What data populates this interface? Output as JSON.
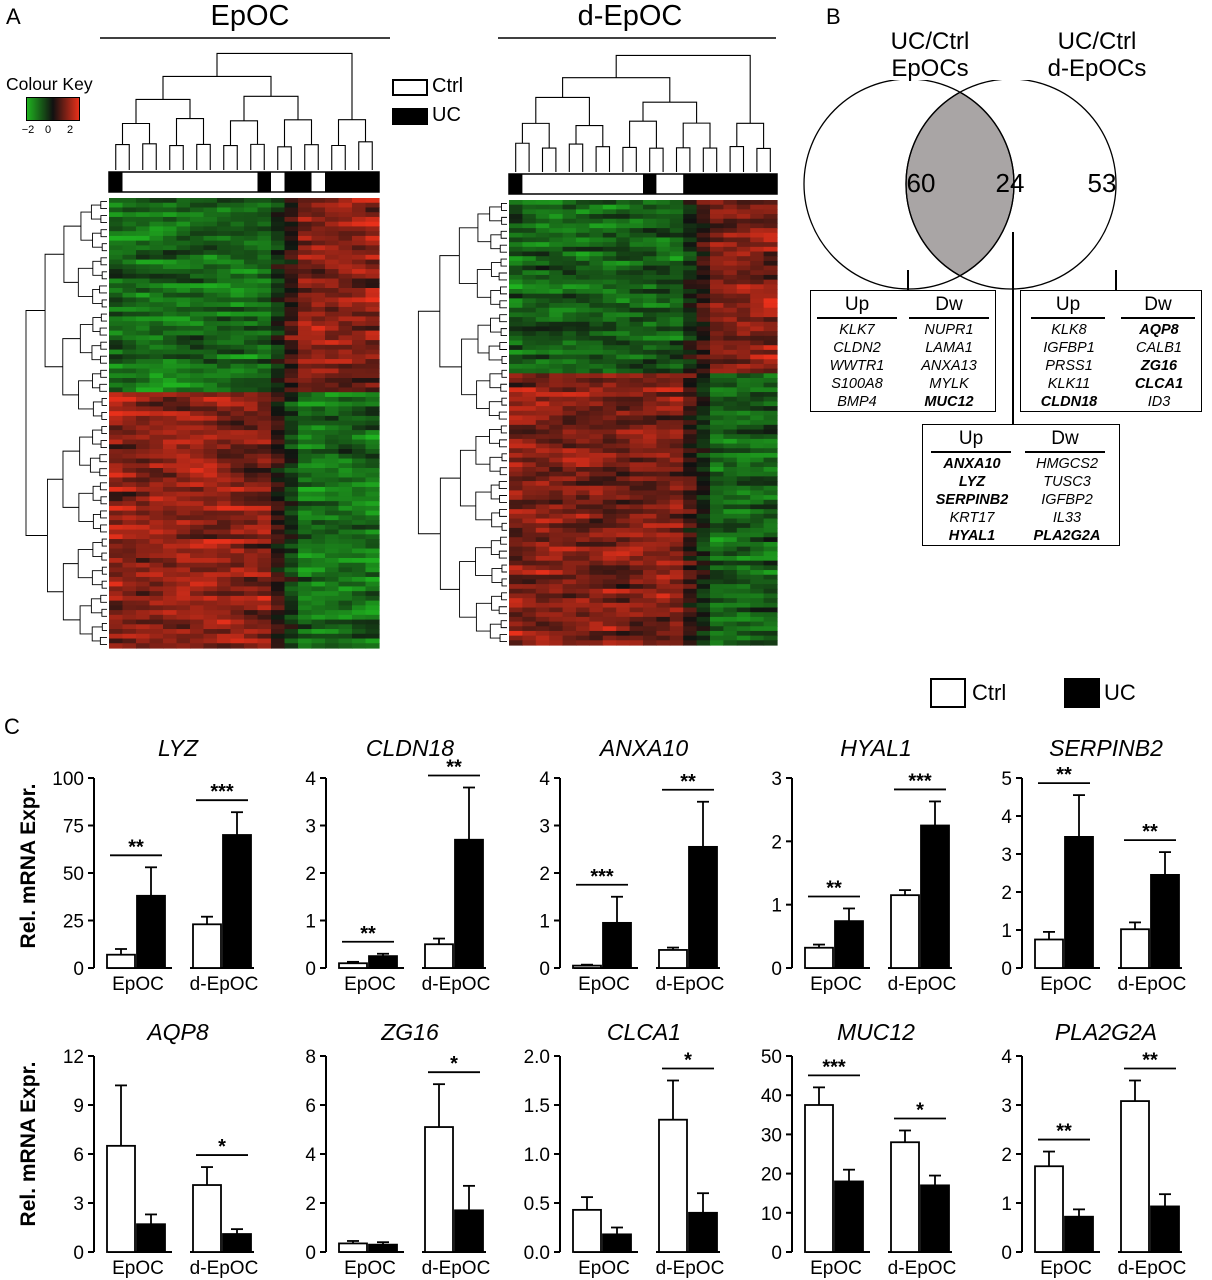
{
  "panel_labels": {
    "a": "A",
    "b": "B",
    "c": "C"
  },
  "heatmaps": {
    "left_title": "EpOC",
    "right_title": "d-EpOC",
    "colour_key": {
      "label": "Colour Key",
      "ticks": [
        "−2",
        "0",
        "2"
      ],
      "low_color": "#1fb21f",
      "mid_color": "#111111",
      "high_color": "#e8301a"
    },
    "group_legend": [
      {
        "label": "Ctrl",
        "color": "#ffffff"
      },
      {
        "label": "UC",
        "color": "#000000"
      }
    ],
    "left_group_bar": [
      "UC",
      "Ctrl",
      "Ctrl",
      "Ctrl",
      "Ctrl",
      "Ctrl",
      "Ctrl",
      "Ctrl",
      "Ctrl",
      "Ctrl",
      "Ctrl",
      "UC",
      "Ctrl",
      "UC",
      "UC",
      "Ctrl",
      "UC",
      "UC",
      "UC",
      "UC"
    ],
    "right_group_bar": [
      "UC",
      "Ctrl",
      "Ctrl",
      "Ctrl",
      "Ctrl",
      "Ctrl",
      "Ctrl",
      "Ctrl",
      "Ctrl",
      "Ctrl",
      "UC",
      "Ctrl",
      "Ctrl",
      "UC",
      "UC",
      "UC",
      "UC",
      "UC",
      "UC",
      "UC"
    ]
  },
  "venn": {
    "left_title": [
      "UC/Ctrl",
      "EpOCs"
    ],
    "right_title": [
      "UC/Ctrl",
      "d-EpOCs"
    ],
    "left_count": "60",
    "overlap_count": "24",
    "right_count": "53",
    "overlap_color": "#a9a5a5",
    "boxes": {
      "left": {
        "up_label": "Up",
        "dw_label": "Dw",
        "up": [
          {
            "t": "KLK7",
            "b": false
          },
          {
            "t": "CLDN2",
            "b": false
          },
          {
            "t": "WWTR1",
            "b": false
          },
          {
            "t": "S100A8",
            "b": false
          },
          {
            "t": "BMP4",
            "b": false
          }
        ],
        "dw": [
          {
            "t": "NUPR1",
            "b": false
          },
          {
            "t": "LAMA1",
            "b": false
          },
          {
            "t": "ANXA13",
            "b": false
          },
          {
            "t": "MYLK",
            "b": false
          },
          {
            "t": "MUC12",
            "b": true
          }
        ]
      },
      "right": {
        "up_label": "Up",
        "dw_label": "Dw",
        "up": [
          {
            "t": "KLK8",
            "b": false
          },
          {
            "t": "IGFBP1",
            "b": false
          },
          {
            "t": "PRSS1",
            "b": false
          },
          {
            "t": "KLK11",
            "b": false
          },
          {
            "t": "CLDN18",
            "b": true
          }
        ],
        "dw": [
          {
            "t": "AQP8",
            "b": true
          },
          {
            "t": "CALB1",
            "b": false
          },
          {
            "t": "ZG16",
            "b": true
          },
          {
            "t": "CLCA1",
            "b": true
          },
          {
            "t": "ID3",
            "b": false
          }
        ]
      },
      "center": {
        "up_label": "Up",
        "dw_label": "Dw",
        "up": [
          {
            "t": "ANXA10",
            "b": true
          },
          {
            "t": "LYZ",
            "b": true
          },
          {
            "t": "SERPINB2",
            "b": true
          },
          {
            "t": "KRT17",
            "b": false
          },
          {
            "t": "HYAL1",
            "b": true
          }
        ],
        "dw": [
          {
            "t": "HMGCS2",
            "b": false
          },
          {
            "t": "TUSC3",
            "b": false
          },
          {
            "t": "IGFBP2",
            "b": false
          },
          {
            "t": "IL33",
            "b": false
          },
          {
            "t": "PLA2G2A",
            "b": true
          }
        ]
      }
    }
  },
  "legend": {
    "ctrl_label": "Ctrl",
    "uc_label": "UC",
    "ctrl_color": "#ffffff",
    "uc_color": "#000000"
  },
  "ylabel": "Rel. mRNA Expr.",
  "chart_data": [
    {
      "type": "bar",
      "title": "LYZ",
      "categories": [
        "EpOC",
        "d-EpOC"
      ],
      "ylim": [
        0,
        100
      ],
      "yticks": [
        "0",
        "25",
        "50",
        "75",
        "100"
      ],
      "series": [
        {
          "name": "Ctrl",
          "values": [
            7,
            23
          ],
          "errors": [
            3,
            4
          ]
        },
        {
          "name": "UC",
          "values": [
            38,
            70
          ],
          "errors": [
            15,
            12
          ]
        }
      ],
      "significance": [
        "**",
        "***"
      ]
    },
    {
      "type": "bar",
      "title": "CLDN18",
      "categories": [
        "EpOC",
        "d-EpOC"
      ],
      "ylim": [
        0,
        4
      ],
      "yticks": [
        "0",
        "1",
        "2",
        "3",
        "4"
      ],
      "series": [
        {
          "name": "Ctrl",
          "values": [
            0.1,
            0.5
          ],
          "errors": [
            0.03,
            0.12
          ]
        },
        {
          "name": "UC",
          "values": [
            0.25,
            2.7
          ],
          "errors": [
            0.05,
            1.1
          ]
        }
      ],
      "significance": [
        "**",
        "**"
      ]
    },
    {
      "type": "bar",
      "title": "ANXA10",
      "categories": [
        "EpOC",
        "d-EpOC"
      ],
      "ylim": [
        0,
        4
      ],
      "yticks": [
        "0",
        "1",
        "2",
        "3",
        "4"
      ],
      "series": [
        {
          "name": "Ctrl",
          "values": [
            0.05,
            0.38
          ],
          "errors": [
            0.02,
            0.05
          ]
        },
        {
          "name": "UC",
          "values": [
            0.95,
            2.55
          ],
          "errors": [
            0.55,
            0.95
          ]
        }
      ],
      "significance": [
        "***",
        "**"
      ]
    },
    {
      "type": "bar",
      "title": "HYAL1",
      "categories": [
        "EpOC",
        "d-EpOC"
      ],
      "ylim": [
        0,
        3
      ],
      "yticks": [
        "0",
        "1",
        "2",
        "3"
      ],
      "series": [
        {
          "name": "Ctrl",
          "values": [
            0.32,
            1.15
          ],
          "errors": [
            0.05,
            0.08
          ]
        },
        {
          "name": "UC",
          "values": [
            0.74,
            2.25
          ],
          "errors": [
            0.2,
            0.38
          ]
        }
      ],
      "significance": [
        "**",
        "***"
      ]
    },
    {
      "type": "bar",
      "title": "SERPINB2",
      "categories": [
        "EpOC",
        "d-EpOC"
      ],
      "ylim": [
        0,
        5
      ],
      "yticks": [
        "0",
        "1",
        "2",
        "3",
        "4",
        "5"
      ],
      "series": [
        {
          "name": "Ctrl",
          "values": [
            0.75,
            1.02
          ],
          "errors": [
            0.2,
            0.18
          ]
        },
        {
          "name": "UC",
          "values": [
            3.45,
            2.45
          ],
          "errors": [
            1.1,
            0.6
          ]
        }
      ],
      "significance": [
        "**",
        "**"
      ]
    },
    {
      "type": "bar",
      "title": "AQP8",
      "categories": [
        "EpOC",
        "d-EpOC"
      ],
      "ylim": [
        0,
        12
      ],
      "yticks": [
        "0",
        "3",
        "6",
        "9",
        "12"
      ],
      "series": [
        {
          "name": "Ctrl",
          "values": [
            6.5,
            4.1
          ],
          "errors": [
            3.7,
            1.1
          ]
        },
        {
          "name": "UC",
          "values": [
            1.7,
            1.1
          ],
          "errors": [
            0.6,
            0.3
          ]
        }
      ],
      "significance": [
        "",
        "*"
      ]
    },
    {
      "type": "bar",
      "title": "ZG16",
      "categories": [
        "EpOC",
        "d-EpOC"
      ],
      "ylim": [
        0,
        8
      ],
      "yticks": [
        "0",
        "2",
        "4",
        "6",
        "8"
      ],
      "series": [
        {
          "name": "Ctrl",
          "values": [
            0.35,
            5.1
          ],
          "errors": [
            0.1,
            1.75
          ]
        },
        {
          "name": "UC",
          "values": [
            0.3,
            1.7
          ],
          "errors": [
            0.1,
            1.0
          ]
        }
      ],
      "significance": [
        "",
        "*"
      ]
    },
    {
      "type": "bar",
      "title": "CLCA1",
      "categories": [
        "EpOC",
        "d-EpOC"
      ],
      "ylim": [
        0,
        2.0
      ],
      "yticks": [
        "0.0",
        "0.5",
        "1.0",
        "1.5",
        "2.0"
      ],
      "series": [
        {
          "name": "Ctrl",
          "values": [
            0.43,
            1.35
          ],
          "errors": [
            0.13,
            0.4
          ]
        },
        {
          "name": "UC",
          "values": [
            0.18,
            0.4
          ],
          "errors": [
            0.07,
            0.2
          ]
        }
      ],
      "significance": [
        "",
        "*"
      ]
    },
    {
      "type": "bar",
      "title": "MUC12",
      "categories": [
        "EpOC",
        "d-EpOC"
      ],
      "ylim": [
        0,
        50
      ],
      "yticks": [
        "0",
        "10",
        "20",
        "30",
        "40",
        "50"
      ],
      "series": [
        {
          "name": "Ctrl",
          "values": [
            37.5,
            28
          ],
          "errors": [
            4.5,
            3
          ]
        },
        {
          "name": "UC",
          "values": [
            18,
            17
          ],
          "errors": [
            3,
            2.5
          ]
        }
      ],
      "significance": [
        "***",
        "*"
      ]
    },
    {
      "type": "bar",
      "title": "PLA2G2A",
      "categories": [
        "EpOC",
        "d-EpOC"
      ],
      "ylim": [
        0,
        4
      ],
      "yticks": [
        "0",
        "1",
        "2",
        "3",
        "4"
      ],
      "series": [
        {
          "name": "Ctrl",
          "values": [
            1.75,
            3.08
          ],
          "errors": [
            0.3,
            0.42
          ]
        },
        {
          "name": "UC",
          "values": [
            0.72,
            0.93
          ],
          "errors": [
            0.15,
            0.25
          ]
        }
      ],
      "significance": [
        "**",
        "**"
      ]
    }
  ]
}
